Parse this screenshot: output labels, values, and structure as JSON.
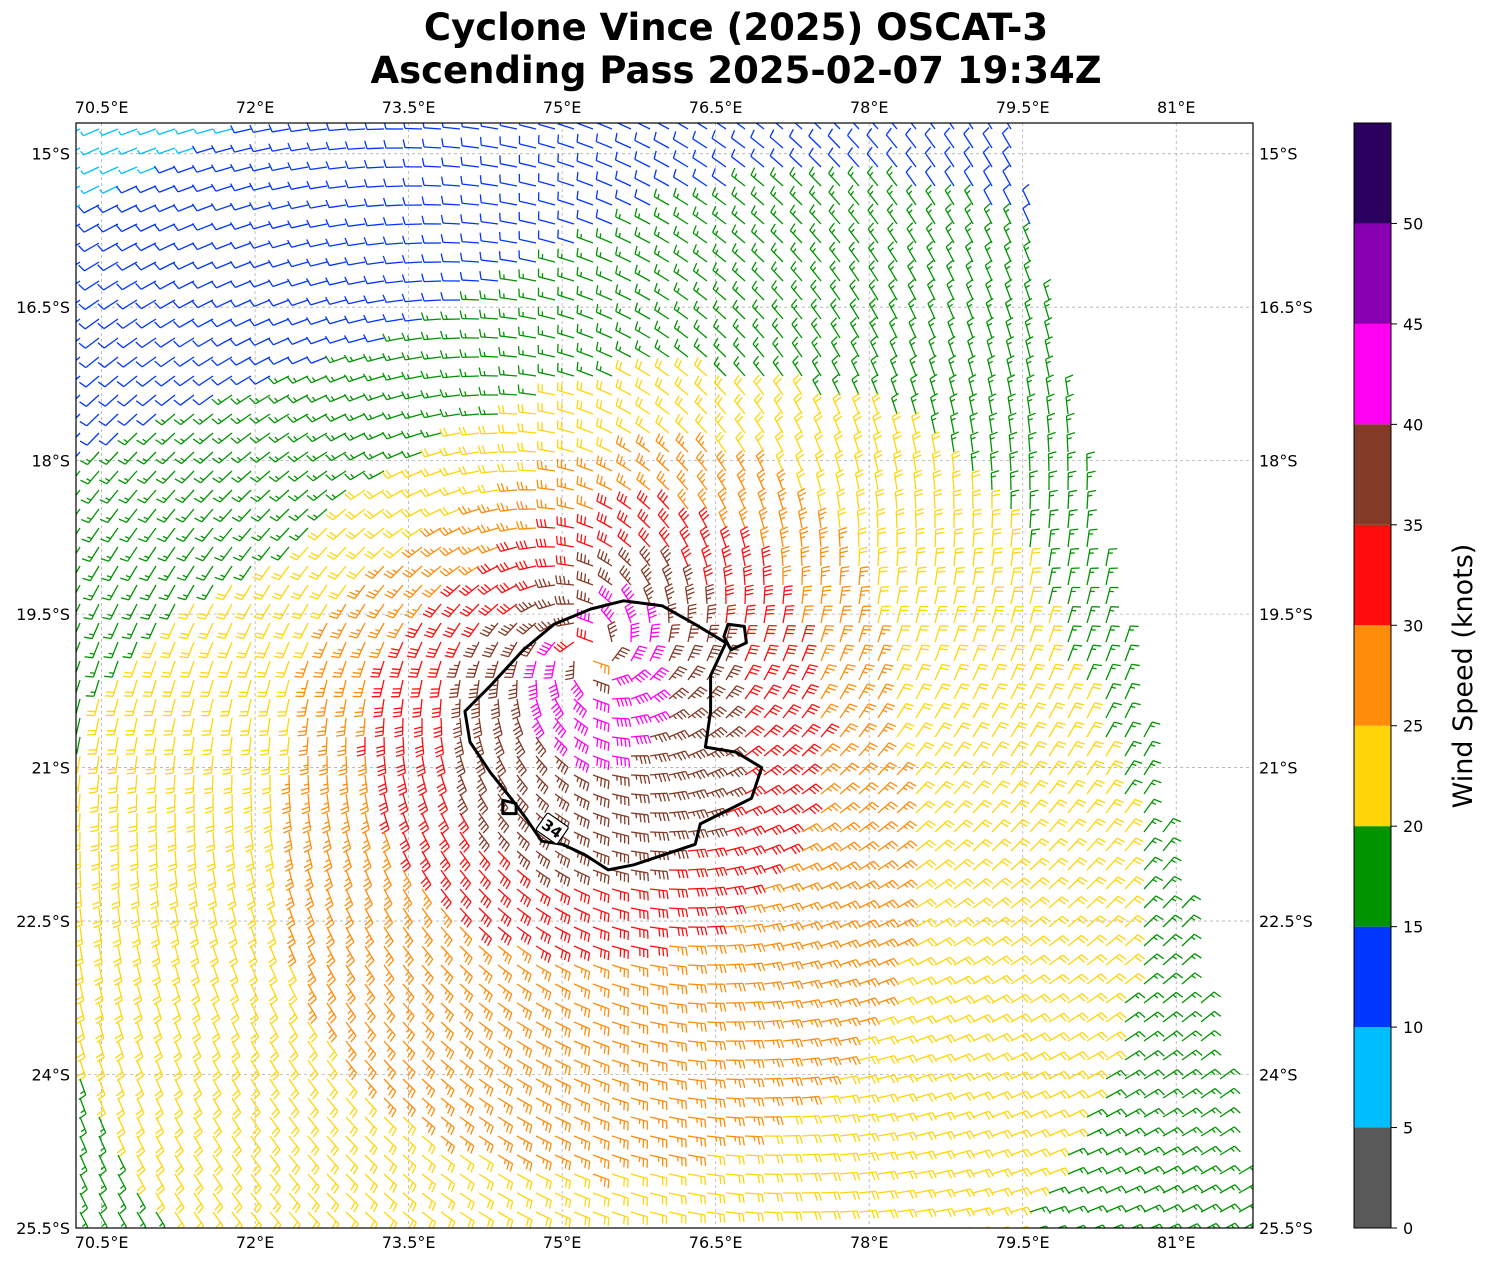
{
  "title": {
    "line1": "Cyclone Vince (2025) OSCAT-3",
    "line2": "Ascending Pass 2025-02-07 19:34Z"
  },
  "map": {
    "lon_range": [
      70.25,
      81.75
    ],
    "lat_range": [
      -25.5,
      -14.7
    ],
    "lon_ticks": [
      {
        "value": 70.5,
        "label": "70.5°E"
      },
      {
        "value": 72.0,
        "label": "72°E"
      },
      {
        "value": 73.5,
        "label": "73.5°E"
      },
      {
        "value": 75.0,
        "label": "75°E"
      },
      {
        "value": 76.5,
        "label": "76.5°E"
      },
      {
        "value": 78.0,
        "label": "78°E"
      },
      {
        "value": 79.5,
        "label": "79.5°E"
      },
      {
        "value": 81.0,
        "label": "81°E"
      }
    ],
    "lat_ticks": [
      {
        "value": -15.0,
        "label": "15°S"
      },
      {
        "value": -16.5,
        "label": "16.5°S"
      },
      {
        "value": -18.0,
        "label": "18°S"
      },
      {
        "value": -19.5,
        "label": "19.5°S"
      },
      {
        "value": -21.0,
        "label": "21°S"
      },
      {
        "value": -22.5,
        "label": "22.5°S"
      },
      {
        "value": -24.0,
        "label": "24°S"
      },
      {
        "value": -25.5,
        "label": "25.5°S"
      }
    ],
    "gridlines": true,
    "contour": {
      "level": 34,
      "label": "34",
      "color": "#000000"
    },
    "storm_center": {
      "lon": 75.3,
      "lat": -19.9
    },
    "swath_edge_lon_at_top": 79.4,
    "swath_edge_lon_at_bottom": 81.75
  },
  "colorbar": {
    "label": "Wind Speed (knots)",
    "bounds": [
      0,
      5,
      10,
      15,
      20,
      25,
      30,
      35,
      40,
      45,
      50,
      55
    ],
    "tick_labels": [
      "0",
      "5",
      "10",
      "15",
      "20",
      "25",
      "30",
      "35",
      "40",
      "45",
      "50"
    ],
    "colors": [
      "#595959",
      "#00bfff",
      "#0036ff",
      "#009400",
      "#ffd50a",
      "#ff8c0a",
      "#ff0d0d",
      "#833b28",
      "#ff00f2",
      "#8900b3",
      "#2b005e"
    ]
  }
}
